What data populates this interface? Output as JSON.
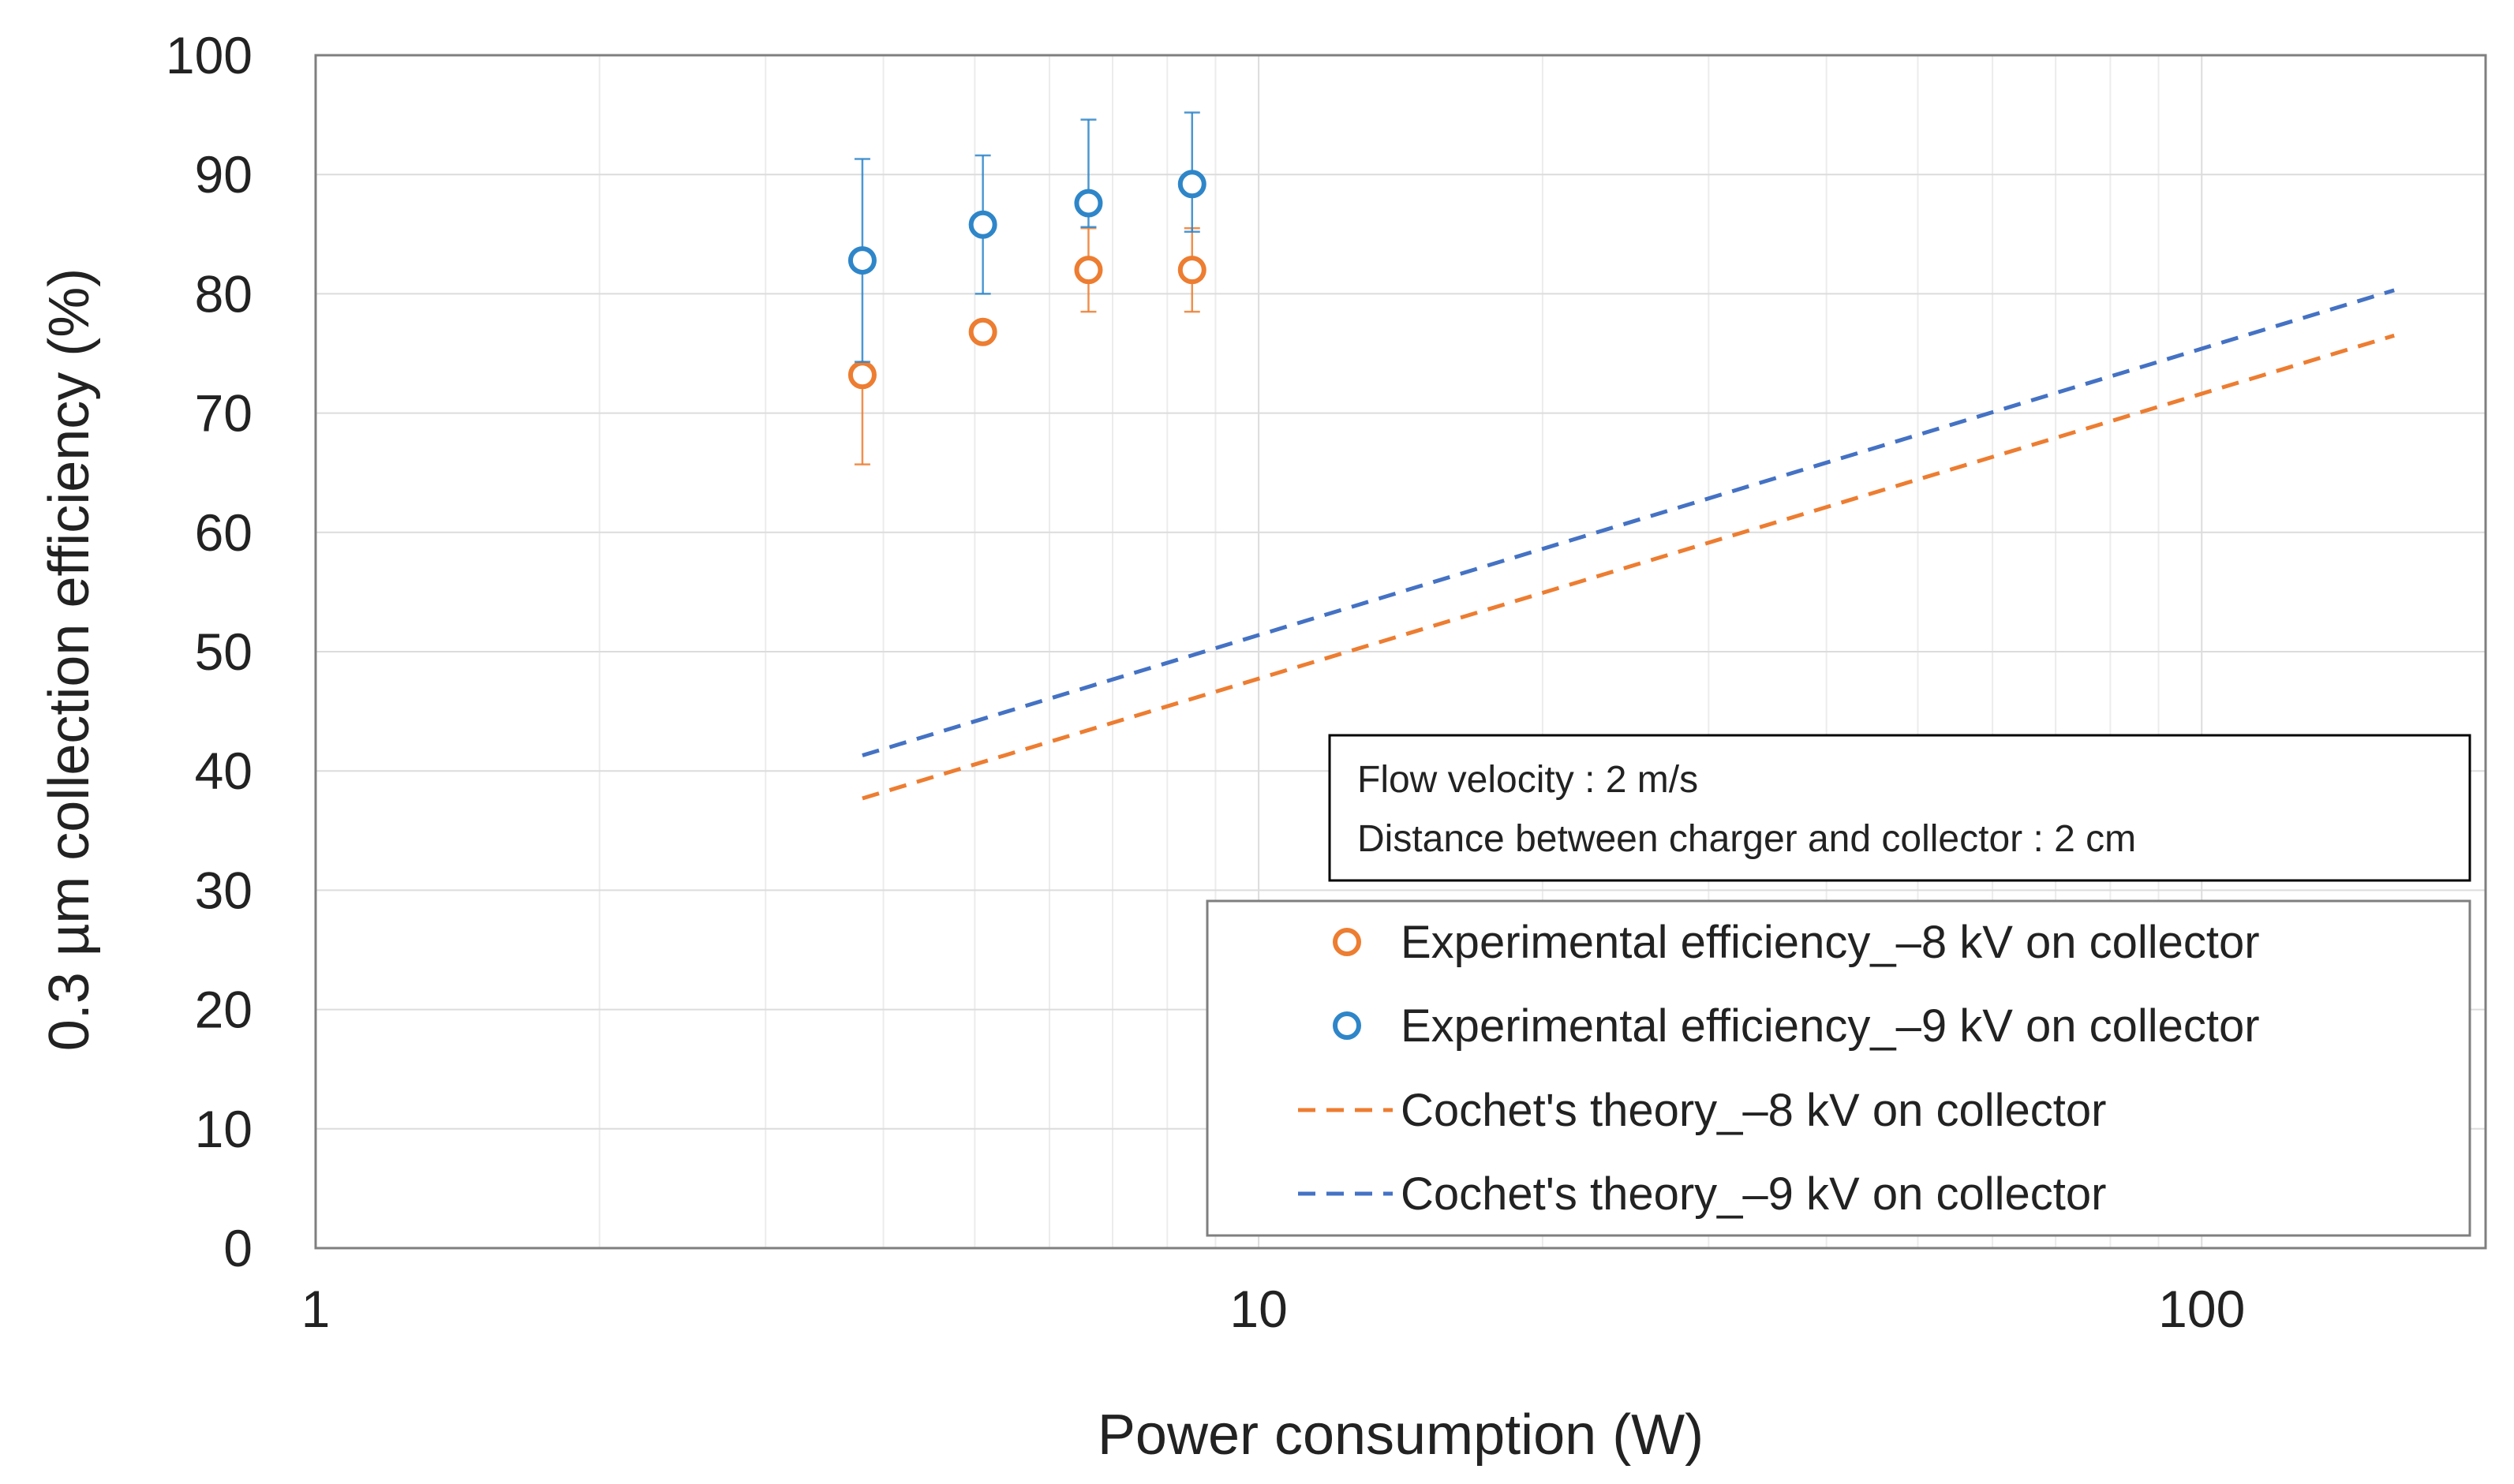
{
  "chart_data": {
    "type": "scatter",
    "title": "",
    "xlabel": "Power consumption (W)",
    "ylabel": "0.3 µm collection efficiency (%)",
    "xscale": "log",
    "xlim": [
      1,
      200
    ],
    "ylim": [
      0,
      100
    ],
    "xticks": [
      1,
      10,
      100
    ],
    "xtick_labels": [
      "1",
      "10",
      "100"
    ],
    "yticks": [
      0,
      10,
      20,
      30,
      40,
      50,
      60,
      70,
      80,
      90,
      100
    ],
    "ytick_labels": [
      "0",
      "10",
      "20",
      "30",
      "40",
      "50",
      "60",
      "70",
      "80",
      "90",
      "100"
    ],
    "grid": true,
    "series": [
      {
        "name": "Experimental efficiency_–8 kV on collector",
        "kind": "scatter",
        "color": "#ED7D31",
        "x": [
          3.8,
          5.1,
          6.6,
          8.5
        ],
        "y": [
          73.2,
          76.8,
          82.0,
          82.0
        ],
        "err_low": [
          7.5,
          0.5,
          3.5,
          3.5
        ],
        "err_high": [
          0.5,
          0.5,
          3.5,
          3.5
        ]
      },
      {
        "name": "Experimental efficiency_–9 kV on collector",
        "kind": "scatter",
        "color": "#2E86C9",
        "x": [
          3.8,
          5.1,
          6.6,
          8.5
        ],
        "y": [
          82.8,
          85.8,
          87.6,
          89.2
        ],
        "err_low": [
          8.5,
          5.8,
          2.0,
          4.0
        ],
        "err_high": [
          8.5,
          5.8,
          7.0,
          6.0
        ]
      },
      {
        "name": "Cochet's theory_–8 kV on collector",
        "kind": "line",
        "style": "dashed",
        "color": "#ED7D31",
        "x": [
          3.8,
          160
        ],
        "y": [
          37.7,
          76.5
        ]
      },
      {
        "name": "Cochet's theory_–9 kV on collector",
        "kind": "line",
        "style": "dashed",
        "color": "#4472C4",
        "x": [
          3.8,
          160
        ],
        "y": [
          41.3,
          80.3
        ]
      }
    ],
    "legend_position": "bottom-right",
    "annotations": [
      "Flow velocity : 2 m/s",
      "Distance between charger and collector : 2 cm"
    ]
  }
}
